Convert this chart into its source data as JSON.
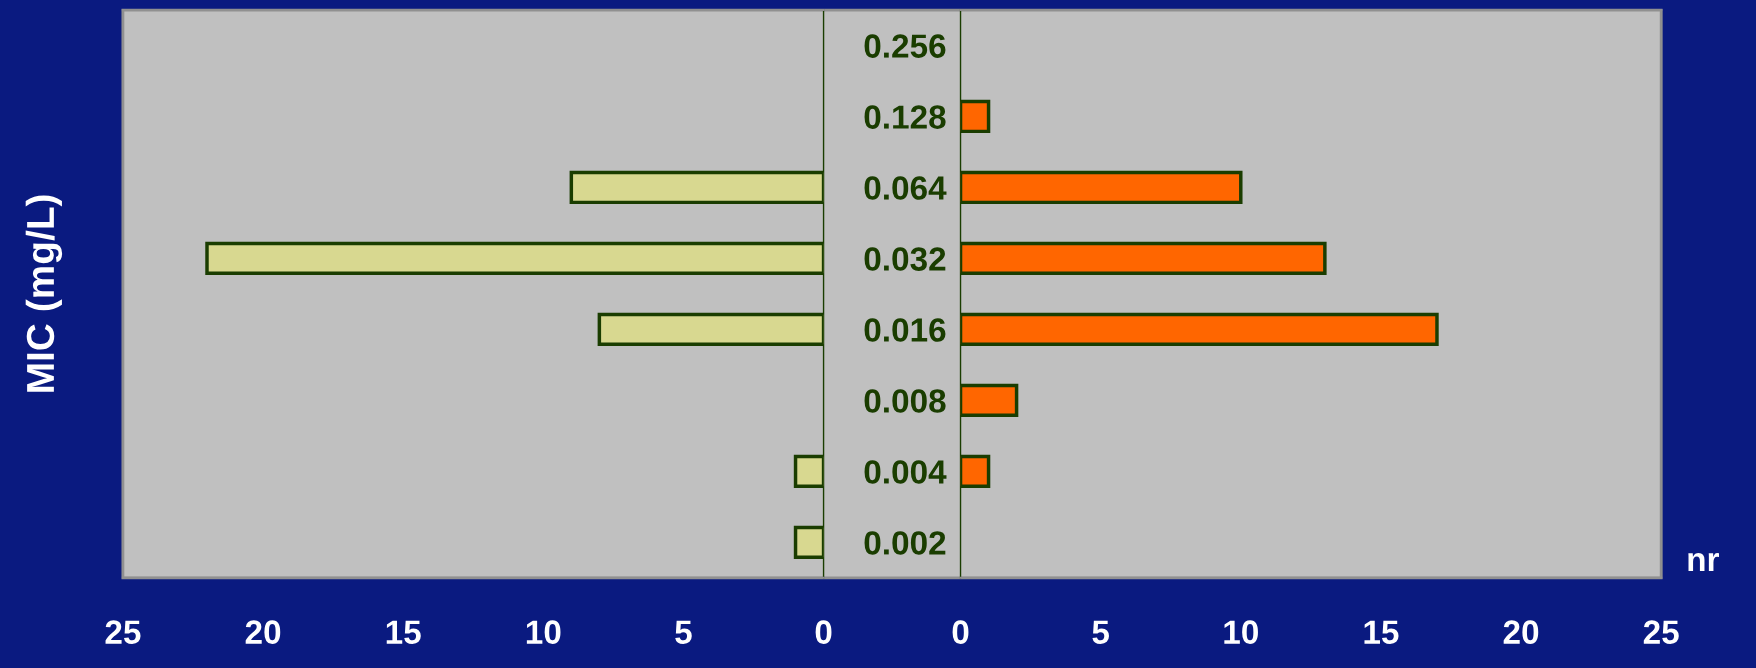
{
  "chart_data": [
    {
      "type": "bar",
      "orientation": "horizontal",
      "ylabel": "MIC (mg/L)",
      "categories": [
        "0.256",
        "0.128",
        "0.064",
        "0.032",
        "0.016",
        "0.008",
        "0.004",
        "0.002"
      ],
      "tick_labels": "x",
      "series": [
        {
          "color": "#d8d890",
          "values": [
            null,
            null,
            9,
            22,
            8,
            null,
            1,
            1
          ]
        }
      ],
      "xlim": [
        25,
        0
      ],
      "xticks": [
        25,
        20,
        15,
        10,
        5,
        0
      ]
    },
    {
      "type": "bar",
      "orientation": "horizontal",
      "xlabel": "nr",
      "categories": [
        "0.256",
        "0.128",
        "0.064",
        "0.032",
        "0.016",
        "0.008",
        "0.004",
        "0.002"
      ],
      "series": [
        {
          "color": "#ff6600",
          "values": [
            null,
            1,
            10,
            13,
            17,
            2,
            1,
            null
          ]
        }
      ],
      "xlim": [
        0,
        25
      ],
      "xticks": [
        0,
        5,
        10,
        15,
        20,
        25
      ]
    }
  ]
}
